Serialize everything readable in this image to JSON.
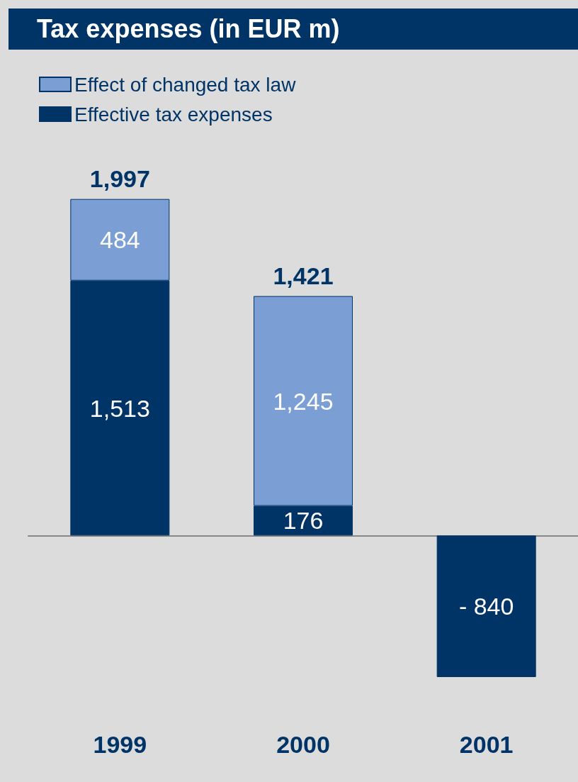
{
  "chart_data": {
    "type": "bar",
    "title": "Tax expenses (in EUR m)",
    "categories": [
      "1999",
      "2000",
      "2001"
    ],
    "stacked": true,
    "legend": "top left",
    "series": [
      {
        "name": "Effective tax expenses",
        "color": "#003366",
        "values": [
          1513,
          176,
          -840
        ],
        "value_labels": [
          "1,513",
          "176",
          "- 840"
        ]
      },
      {
        "name": "Effect of changed tax law",
        "color": "#7b9fd4",
        "values": [
          484,
          1245,
          null
        ],
        "value_labels": [
          "484",
          "1,245",
          null
        ]
      }
    ],
    "totals": [
      "1,997",
      "1,421",
      null
    ]
  }
}
